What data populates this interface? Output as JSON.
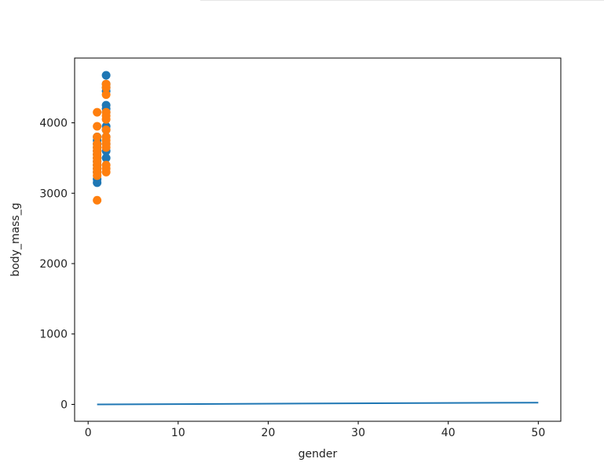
{
  "chart_data": {
    "type": "scatter",
    "title": "",
    "xlabel": "gender",
    "ylabel": "body_mass_g",
    "xlim": [
      -1.5,
      52.5
    ],
    "ylim": [
      -240,
      4920
    ],
    "grid": false,
    "xticks": [
      0,
      10,
      20,
      30,
      40,
      50
    ],
    "yticks": [
      0,
      1000,
      2000,
      3000,
      4000
    ],
    "colors": {
      "blue": "#1f77b4",
      "orange": "#ff7f0e"
    },
    "line": {
      "color": "#1f77b4",
      "points": [
        [
          1,
          0
        ],
        [
          50,
          25
        ]
      ]
    },
    "series": [
      {
        "color": "#1f77b4",
        "points": [
          [
            1,
            3150
          ],
          [
            1,
            3200
          ],
          [
            1,
            3300
          ],
          [
            1,
            3350
          ],
          [
            1,
            3400
          ],
          [
            1,
            3450
          ],
          [
            1,
            3500
          ],
          [
            1,
            3550
          ],
          [
            1,
            3600
          ],
          [
            1,
            3650
          ],
          [
            1,
            3700
          ],
          [
            1,
            3750
          ],
          [
            1,
            3800
          ],
          [
            2,
            3500
          ],
          [
            2,
            3600
          ],
          [
            2,
            3700
          ],
          [
            2,
            3800
          ],
          [
            2,
            3900
          ],
          [
            2,
            3950
          ],
          [
            2,
            4150
          ],
          [
            2,
            4200
          ],
          [
            2,
            4250
          ],
          [
            2,
            4450
          ],
          [
            2,
            4500
          ],
          [
            2,
            4550
          ],
          [
            2,
            4675
          ]
        ]
      },
      {
        "color": "#ff7f0e",
        "points": [
          [
            1,
            2900
          ],
          [
            1,
            3250
          ],
          [
            1,
            3300
          ],
          [
            1,
            3350
          ],
          [
            1,
            3400
          ],
          [
            1,
            3450
          ],
          [
            1,
            3500
          ],
          [
            1,
            3550
          ],
          [
            1,
            3600
          ],
          [
            1,
            3650
          ],
          [
            1,
            3700
          ],
          [
            1,
            3800
          ],
          [
            1,
            3950
          ],
          [
            1,
            4150
          ],
          [
            2,
            3300
          ],
          [
            2,
            3350
          ],
          [
            2,
            3400
          ],
          [
            2,
            3650
          ],
          [
            2,
            3700
          ],
          [
            2,
            3750
          ],
          [
            2,
            3800
          ],
          [
            2,
            3900
          ],
          [
            2,
            4050
          ],
          [
            2,
            4100
          ],
          [
            2,
            4150
          ],
          [
            2,
            4400
          ],
          [
            2,
            4500
          ],
          [
            2,
            4550
          ]
        ]
      }
    ]
  }
}
